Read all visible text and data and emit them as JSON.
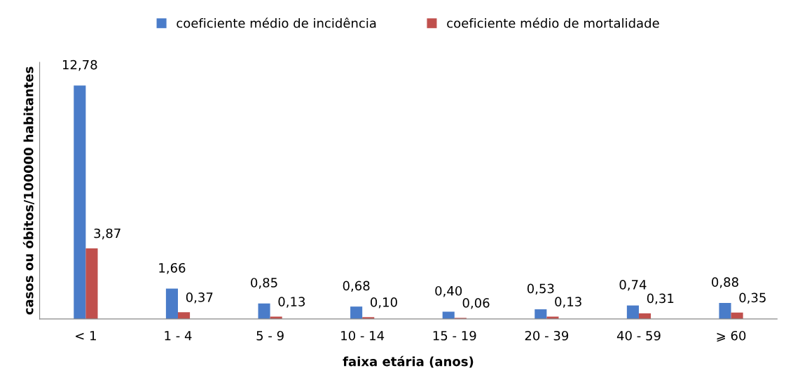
{
  "chart_data": {
    "type": "bar",
    "xlabel": "faixa etária (anos)",
    "ylabel": "casos ou óbitos/100000 habitantes",
    "categories": [
      "< 1",
      "1 - 4",
      "5 - 9",
      "10 - 14",
      "15 - 19",
      "20 - 39",
      "40 - 59",
      "⩾ 60"
    ],
    "series": [
      {
        "name": "coeficiente médio de incidência",
        "color": "#4a7cc9",
        "values": [
          12.78,
          1.66,
          0.85,
          0.68,
          0.4,
          0.53,
          0.74,
          0.88
        ],
        "value_labels": [
          "12,78",
          "1,66",
          "0,85",
          "0,68",
          "0,40",
          "0,53",
          "0,74",
          "0,88"
        ]
      },
      {
        "name": "coeficiente médio de mortalidade",
        "color": "#c0504d",
        "values": [
          3.87,
          0.37,
          0.13,
          0.1,
          0.06,
          0.13,
          0.31,
          0.35
        ],
        "value_labels": [
          "3,87",
          "0,37",
          "0,13",
          "0,10",
          "0,06",
          "0,13",
          "0,31",
          "0,35"
        ]
      }
    ],
    "legend": "top",
    "grid": false
  }
}
